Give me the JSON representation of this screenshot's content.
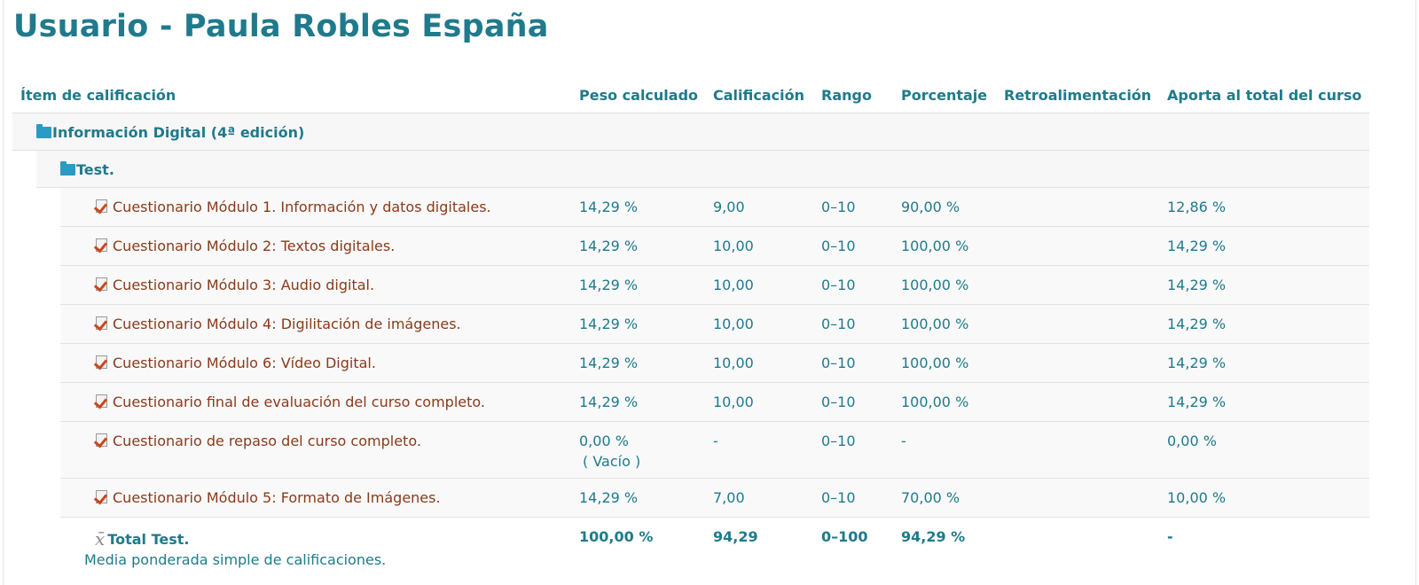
{
  "page_title": "Usuario - Paula Robles España",
  "headers": {
    "item": "Ítem de calificación",
    "peso": "Peso calculado",
    "calificacion": "Calificación",
    "rango": "Rango",
    "porcentaje": "Porcentaje",
    "retro": "Retroalimentación",
    "aporta": "Aporta al total del curso"
  },
  "course_category": "Información Digital (4ª edición)",
  "sub_category": "Test.",
  "items": [
    {
      "name": "Cuestionario Módulo 1. Información y datos digitales.",
      "peso": "14,29 %",
      "cal": "9,00",
      "rango": "0–10",
      "porc": "90,00 %",
      "aporta": "12,86 %"
    },
    {
      "name": "Cuestionario Módulo 2: Textos digitales.",
      "peso": "14,29 %",
      "cal": "10,00",
      "rango": "0–10",
      "porc": "100,00 %",
      "aporta": "14,29 %"
    },
    {
      "name": "Cuestionario Módulo 3: Audio digital.",
      "peso": "14,29 %",
      "cal": "10,00",
      "rango": "0–10",
      "porc": "100,00 %",
      "aporta": "14,29 %"
    },
    {
      "name": "Cuestionario Módulo 4: Digilitación de imágenes.",
      "peso": "14,29 %",
      "cal": "10,00",
      "rango": "0–10",
      "porc": "100,00 %",
      "aporta": "14,29 %"
    },
    {
      "name": "Cuestionario Módulo 6: Vídeo Digital.",
      "peso": "14,29 %",
      "cal": "10,00",
      "rango": "0–10",
      "porc": "100,00 %",
      "aporta": "14,29 %"
    },
    {
      "name": "Cuestionario final de evaluación del curso completo.",
      "peso": "14,29 %",
      "cal": "10,00",
      "rango": "0–10",
      "porc": "100,00 %",
      "aporta": "14,29 %"
    },
    {
      "name": "Cuestionario de repaso del curso completo.",
      "peso": "0,00 %",
      "peso_note": "( Vacío )",
      "cal": "-",
      "rango": "0–10",
      "porc": "-",
      "aporta": "0,00 %"
    },
    {
      "name": "Cuestionario Módulo 5: Formato de Imágenes.",
      "peso": "14,29 %",
      "cal": "7,00",
      "rango": "0–10",
      "porc": "70,00 %",
      "aporta": "10,00 %"
    }
  ],
  "total": {
    "name": "Total Test.",
    "symbol": "x̄",
    "desc": "Media ponderada simple de calificaciones.",
    "peso": "100,00 %",
    "cal": "94,29",
    "rango": "0–100",
    "porc": "94,29 %",
    "aporta": "-"
  },
  "icons": {
    "folder": "folder-icon",
    "quiz": "quiz-icon",
    "colors": {
      "accent": "#1f7a8c",
      "item_link": "#8a3a1a",
      "folder": "#2a9bc4"
    }
  }
}
